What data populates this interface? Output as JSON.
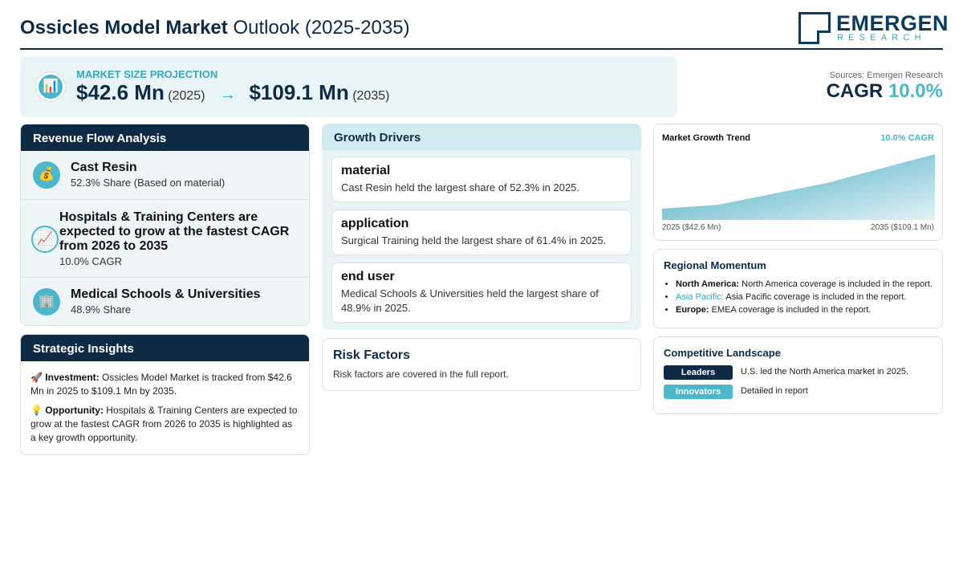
{
  "header": {
    "title_bold": "Ossicles Model Market",
    "title_rest": "Outlook (2025-2035)",
    "logo_name": "EMERGEN",
    "logo_sub": "RESEARCH"
  },
  "banner": {
    "label": "MARKET SIZE PROJECTION",
    "start_value": "$42.6 Mn",
    "start_year": "(2025)",
    "arrow": "→",
    "end_value": "$109.1 Mn",
    "end_year": "(2035)",
    "icon": "bar-chart-icon"
  },
  "summary": {
    "source": "Sources: Emergen Research",
    "cagr_label": "CAGR",
    "cagr_value": "10.0%"
  },
  "revenue": {
    "title": "Revenue Flow Analysis",
    "items": [
      {
        "title": "Cast Resin",
        "sub": "52.3% Share (Based on material)",
        "icon": "money-bag-icon"
      },
      {
        "title": "Hospitals & Training Centers are expected to grow at the fastest CAGR from 2026 to 2035",
        "sub": "10.0% CAGR",
        "icon": "chart-increasing-icon"
      },
      {
        "title": "Medical Schools & Universities",
        "sub": "48.9% Share",
        "icon": "building-icon"
      }
    ]
  },
  "strategic": {
    "title": "Strategic Insights",
    "investment_label": "Investment:",
    "investment_text": "Ossicles Model Market is tracked from $42.6 Mn in 2025 to $109.1 Mn by 2035.",
    "opportunity_label": "Opportunity:",
    "opportunity_text": "Hospitals & Training Centers are expected to grow at the fastest CAGR from 2026 to 2035 is highlighted as a key growth opportunity."
  },
  "drivers": {
    "title": "Growth Drivers",
    "items": [
      {
        "title": "material",
        "text": "Cast Resin held the largest share of 52.3% in 2025."
      },
      {
        "title": "application",
        "text": "Surgical Training held the largest share of 61.4% in 2025."
      },
      {
        "title": "end user",
        "text": "Medical Schools & Universities held the largest share of 48.9% in 2025."
      }
    ]
  },
  "risk": {
    "title": "Risk Factors",
    "text": "Risk factors are covered in the full report."
  },
  "trend": {
    "title": "Market Growth Trend",
    "cagr": "10.0% CAGR",
    "left_label": "2025 ($42.6 Mn)",
    "right_label": "2035 ($109.1 Mn)"
  },
  "regional": {
    "title": "Regional Momentum",
    "items": [
      {
        "name": "North America:",
        "text": "North America coverage is included in the report."
      },
      {
        "name": "Asia Pacific:",
        "text": "Asia Pacific coverage is included in the report."
      },
      {
        "name": "Europe:",
        "text": "EMEA coverage is included in the report."
      }
    ]
  },
  "competitive": {
    "title": "Competitive Landscape",
    "rows": [
      {
        "badge": "Leaders",
        "text": "U.S. led the North America market in 2025.",
        "color": "#0d2b45"
      },
      {
        "badge": "Innovators",
        "text": "Detailed in report",
        "color": "#4cb6cc"
      }
    ]
  },
  "colors": {
    "navy": "#0d2b45",
    "teal": "#4cb6cc"
  }
}
